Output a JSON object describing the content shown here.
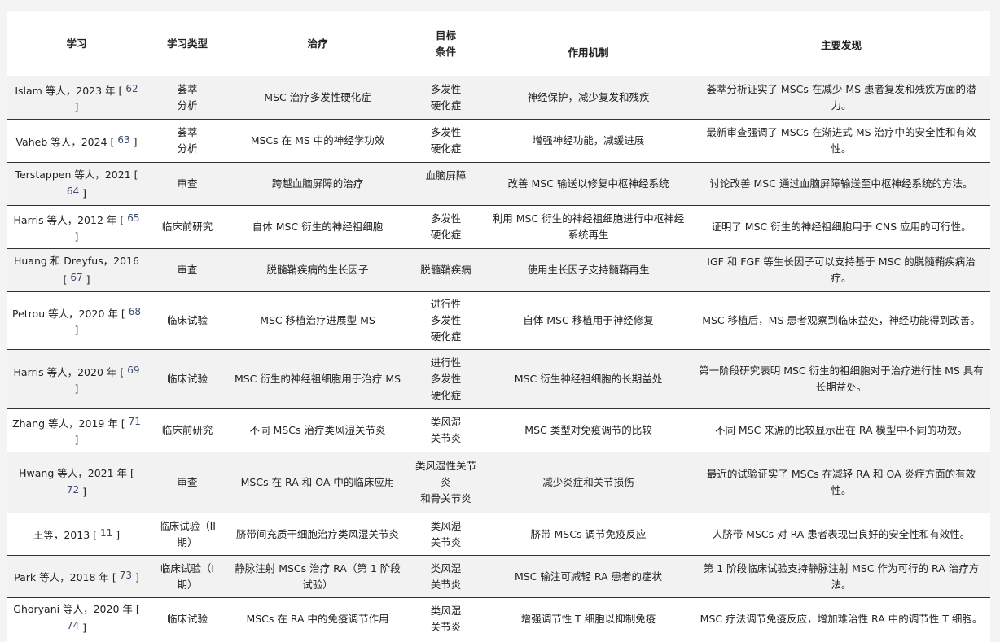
{
  "headers": [
    "学习",
    "学习类型",
    "治疗",
    "目标\n条件",
    "作用机制",
    "主要发现"
  ],
  "rows": [
    {
      "study": "Islam 等人，2023 年 [ ",
      "ref": "62",
      "close": " ]",
      "type": "荟萃\n分析",
      "treatment": "MSC 治疗多发性硬化症",
      "target": "多发性\n硬化症",
      "mechanism": "神经保护，减少复发和残疾",
      "findings": "荟萃分析证实了 MSCs 在减少 MS 患者复发和残疾方面的潜力。"
    },
    {
      "study": "Vaheb 等人，2024 [ ",
      "ref": "63",
      "close": " ]",
      "type": "荟萃\n分析",
      "treatment": "MSCs 在 MS 中的神经学功效",
      "target": "多发性\n硬化症",
      "mechanism": "增强神经功能，减缓进展",
      "findings": "最新审查强调了 MSCs 在渐进式 MS 治疗中的安全性和有效性。"
    },
    {
      "study": "Terstappen 等人，2021 [ ",
      "ref": "64",
      "close": " ]",
      "type": "审查",
      "treatment": "跨越血脑屏障的治疗",
      "target": "血脑屏障",
      "mechanism": "改善 MSC 输送以修复中枢神经系统",
      "findings": "讨论改善 MSC 通过血脑屏障输送至中枢神经系统的方法。"
    },
    {
      "study": "Harris 等人，2012 年 [ ",
      "ref": "65",
      "close": " ]",
      "type": "临床前研究",
      "treatment": "自体 MSC 衍生的神经祖细胞",
      "target": "多发性\n硬化症",
      "mechanism": "利用 MSC 衍生的神经祖细胞进行中枢神经系统再生",
      "findings": "证明了 MSC 衍生的神经祖细胞用于 CNS 应用的可行性。"
    },
    {
      "study": "Huang 和 Dreyfus，2016 [ ",
      "ref": "67",
      "close": " ]",
      "type": "审查",
      "treatment": "脱髓鞘疾病的生长因子",
      "target": "脱髓鞘疾病",
      "mechanism": "使用生长因子支持髓鞘再生",
      "findings": "IGF 和 FGF 等生长因子可以支持基于 MSC 的脱髓鞘疾病治疗。"
    },
    {
      "study": "Petrou 等人，2020 年 [ ",
      "ref": "68",
      "close": " ]",
      "type": "临床试验",
      "treatment": "MSC 移植治疗进展型 MS",
      "target": "进行性\n多发性\n硬化症",
      "mechanism": "自体 MSC 移植用于神经修复",
      "findings": "MSC 移植后，MS 患者观察到临床益处，神经功能得到改善。"
    },
    {
      "study": "Harris 等人，2020 年 [ ",
      "ref": "69",
      "close": " ]",
      "type": "临床试验",
      "treatment": "MSC 衍生的神经祖细胞用于治疗 MS",
      "target": "进行性\n多发性\n硬化症",
      "mechanism": "MSC 衍生神经祖细胞的长期益处",
      "findings": "第一阶段研究表明 MSC 衍生的祖细胞对于治疗进行性 MS 具有长期益处。"
    },
    {
      "study": "Zhang 等人，2019 年 [ ",
      "ref": "71",
      "close": " ]",
      "type": "临床前研究",
      "treatment": "不同 MSCs 治疗类风湿关节炎",
      "target": "类风湿\n关节炎",
      "mechanism": "MSC 类型对免疫调节的比较",
      "findings": "不同 MSC 来源的比较显示出在 RA 模型中不同的功效。"
    },
    {
      "study": "Hwang 等人，2021 年 [ ",
      "ref": "72",
      "close": " ]",
      "type": "审查",
      "treatment": "MSCs 在 RA 和 OA 中的临床应用",
      "target": "类风湿性关节炎\n和骨关节炎",
      "mechanism": "减少炎症和关节损伤",
      "findings": "最近的试验证实了 MSCs 在减轻 RA 和 OA 炎症方面的有效性。"
    },
    {
      "study": "王等，2013 [ ",
      "ref": "11",
      "close": " ]",
      "type": "临床试验（II 期）",
      "treatment": "脐带间充质干细胞治疗类风湿关节炎",
      "target": "类风湿\n关节炎",
      "mechanism": "脐带 MSCs 调节免疫反应",
      "findings": "人脐带 MSCs 对 RA 患者表现出良好的安全性和有效性。"
    },
    {
      "study": "Park 等人，2018 年 [ ",
      "ref": "73",
      "close": " ]",
      "type": "临床试验（I 期）",
      "treatment": "静脉注射 MSCs 治疗 RA（第 1 阶段试验）",
      "target": "类风湿\n关节炎",
      "mechanism": "MSC 输注可减轻 RA 患者的症状",
      "findings": "第 1 阶段临床试验支持静脉注射 MSC 作为可行的 RA 治疗方法。"
    },
    {
      "study": "Ghoryani 等人，2020 年 [ ",
      "ref": "74",
      "close": " ]",
      "type": "临床试验",
      "treatment": "MSCs 在 RA 中的免疫调节作用",
      "target": "类风湿\n关节炎",
      "mechanism": "增强调节性 T 细胞以抑制免疫",
      "findings": "MSC 疗法调节免疫反应，增加难治性 RA 中的调节性 T 细胞。"
    }
  ]
}
